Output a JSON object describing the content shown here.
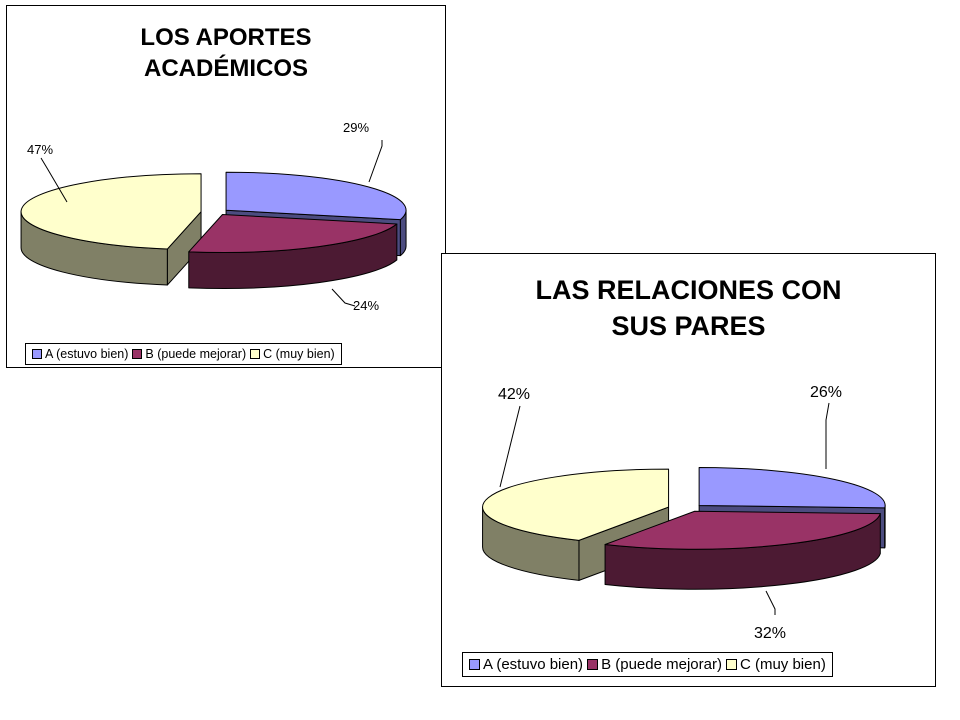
{
  "chart_data": [
    {
      "type": "pie",
      "title": [
        "LOS APORTES",
        "ACADÉMICOS"
      ],
      "categories": [
        "A (estuvo bien)",
        "B (puede mejorar)",
        "C (muy bien)"
      ],
      "values": [
        29,
        24,
        47
      ],
      "data_labels": [
        "29%",
        "24%",
        "47%"
      ],
      "legend_position": "bottom",
      "colors": [
        "#9999ff",
        "#993366",
        "#ffffcc"
      ],
      "side_colors": [
        "#4c4c80",
        "#4c1a33",
        "#808066"
      ]
    },
    {
      "type": "pie",
      "title": [
        "LAS RELACIONES CON",
        "SUS PARES"
      ],
      "categories": [
        "A (estuvo bien)",
        "B (puede mejorar)",
        "C (muy bien)"
      ],
      "values": [
        26,
        32,
        42
      ],
      "data_labels": [
        "26%",
        "32%",
        "42%"
      ],
      "legend_position": "bottom",
      "colors": [
        "#9999ff",
        "#993366",
        "#ffffcc"
      ],
      "side_colors": [
        "#4c4c80",
        "#4c1a33",
        "#808066"
      ]
    }
  ]
}
